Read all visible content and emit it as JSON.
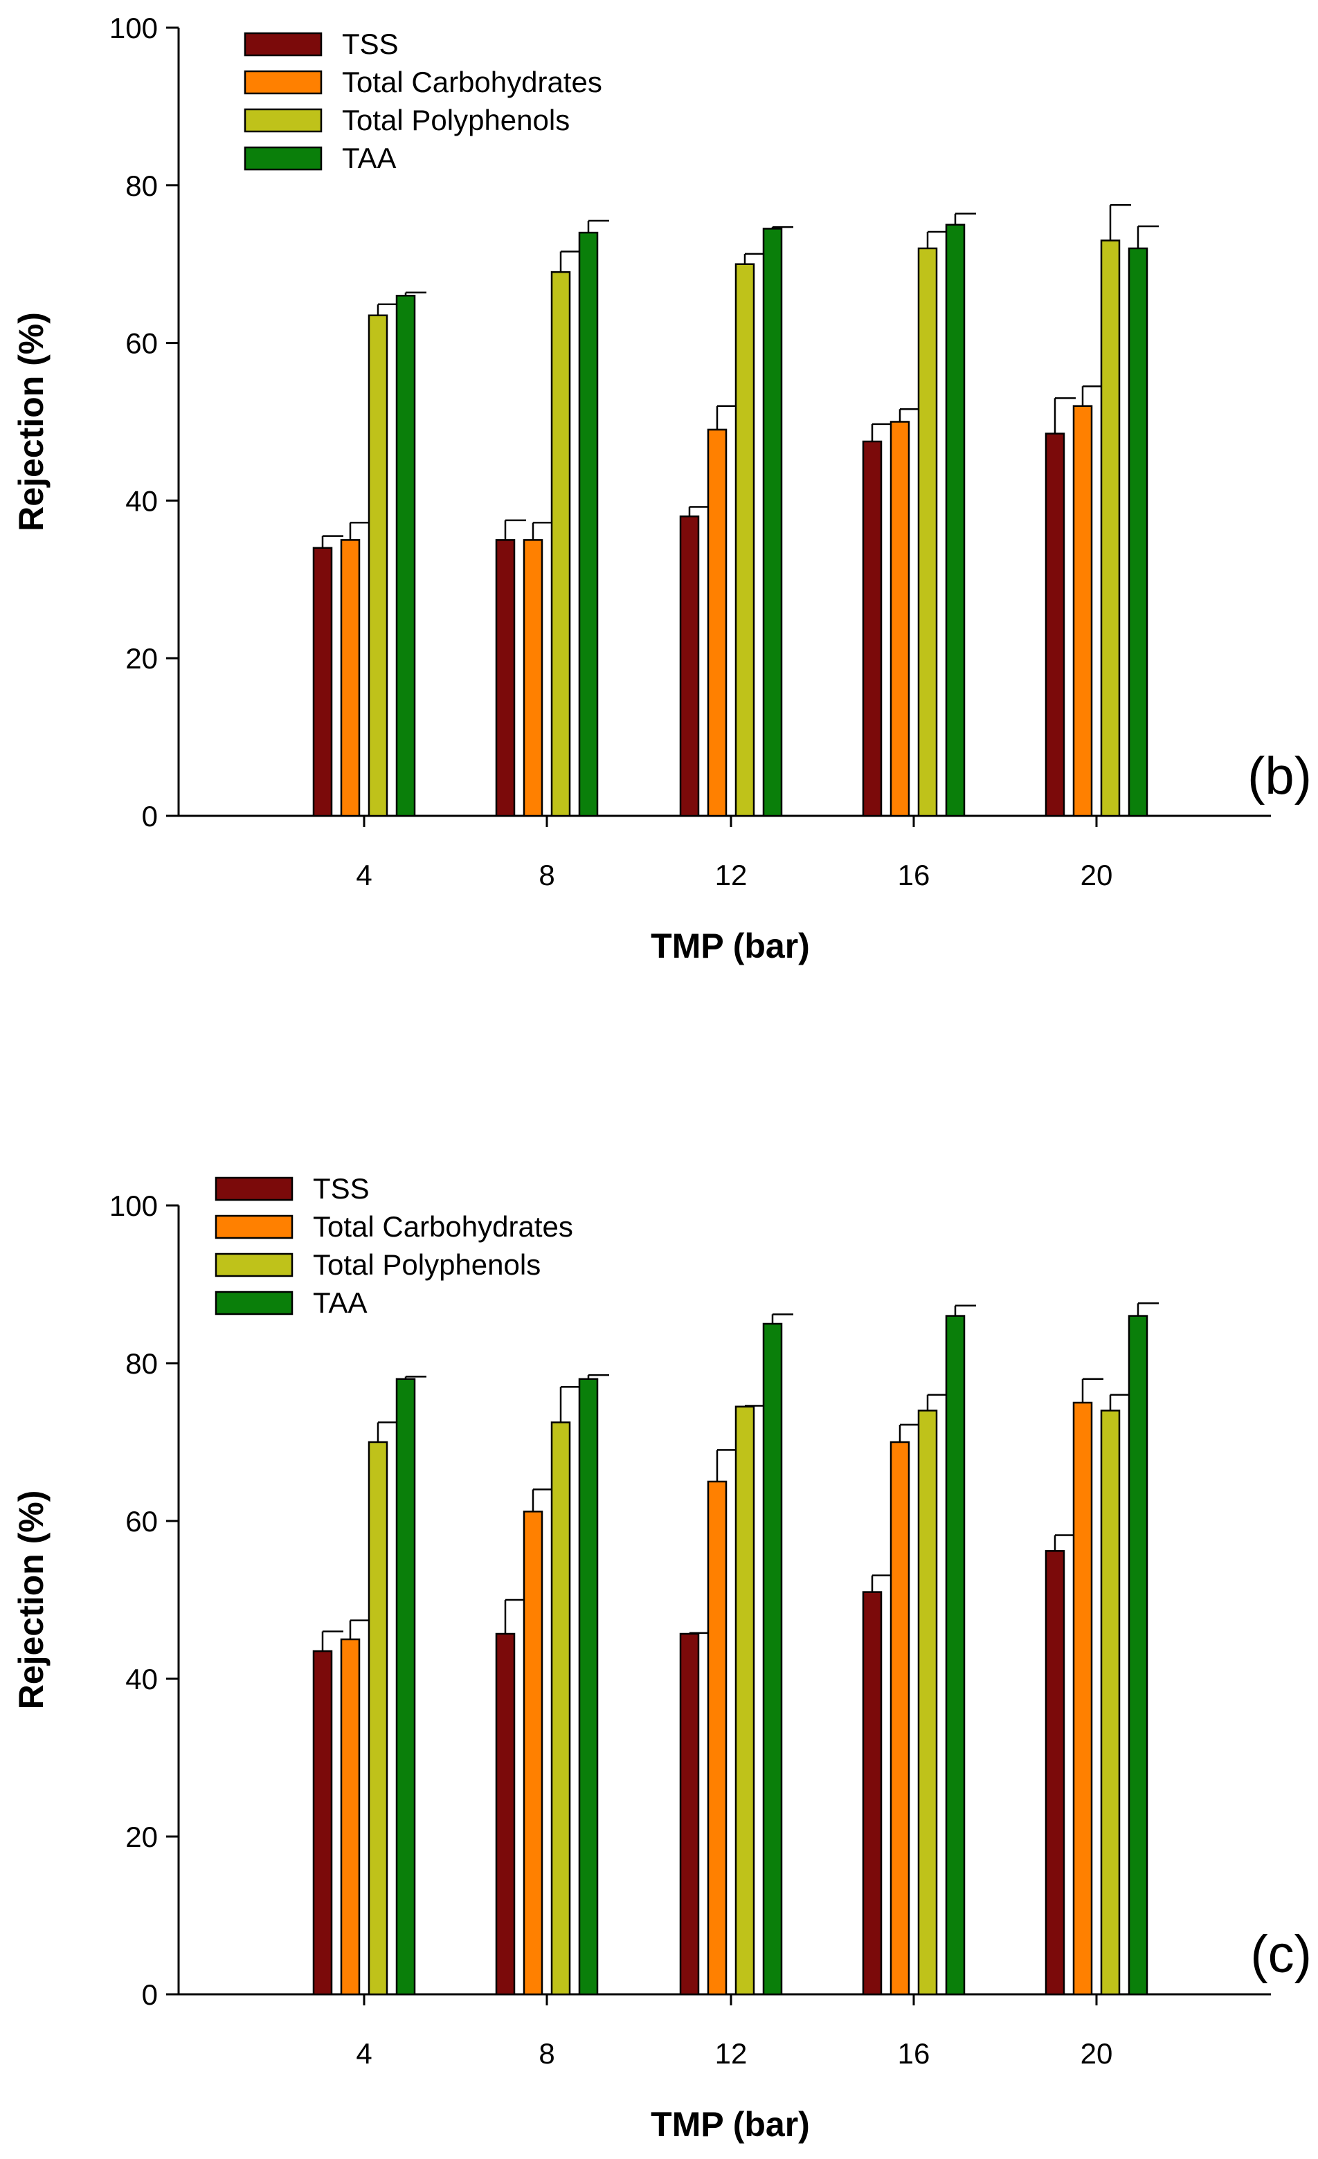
{
  "chart_data": [
    {
      "type": "bar",
      "panel_label": "(b)",
      "xlabel": "TMP (bar)",
      "ylabel": "Rejection (%)",
      "ylim": [
        0,
        100
      ],
      "yticks": [
        0,
        20,
        40,
        60,
        80,
        100
      ],
      "categories": [
        "4",
        "8",
        "12",
        "16",
        "20"
      ],
      "legend_position": "top-left",
      "series": [
        {
          "name": "TSS",
          "color": "#7b0a0a",
          "values": [
            34,
            35,
            38,
            47.5,
            48.5
          ],
          "errors": [
            1.5,
            2.5,
            1.2,
            2.2,
            4.5
          ]
        },
        {
          "name": "Total Carbohydrates",
          "color": "#ff8000",
          "values": [
            35,
            35,
            49,
            50,
            52
          ],
          "errors": [
            2.2,
            2.2,
            3.0,
            1.6,
            2.5
          ]
        },
        {
          "name": "Total Polyphenols",
          "color": "#bfc21a",
          "values": [
            63.5,
            69,
            70,
            72,
            73
          ],
          "errors": [
            1.4,
            2.6,
            1.3,
            2.1,
            4.5
          ]
        },
        {
          "name": "TAA",
          "color": "#0a7f0a",
          "values": [
            66,
            74,
            74.5,
            75,
            72
          ],
          "errors": [
            0.4,
            1.5,
            0.2,
            1.4,
            2.8
          ]
        }
      ]
    },
    {
      "type": "bar",
      "panel_label": "(c)",
      "xlabel": "TMP (bar)",
      "ylabel": "Rejection (%)",
      "ylim": [
        0,
        100
      ],
      "yticks": [
        0,
        20,
        40,
        60,
        80,
        100
      ],
      "categories": [
        "4",
        "8",
        "12",
        "16",
        "20"
      ],
      "legend_position": "top-left",
      "series": [
        {
          "name": "TSS",
          "color": "#7b0a0a",
          "values": [
            43.5,
            45.7,
            45.7,
            51,
            56.2
          ],
          "errors": [
            2.5,
            4.3,
            0.1,
            2.1,
            2.0
          ]
        },
        {
          "name": "Total Carbohydrates",
          "color": "#ff8000",
          "values": [
            45,
            61.2,
            65,
            70,
            75
          ],
          "errors": [
            2.4,
            2.8,
            4.0,
            2.2,
            3.0
          ]
        },
        {
          "name": "Total Polyphenols",
          "color": "#bfc21a",
          "values": [
            70,
            72.5,
            74.5,
            74,
            74
          ],
          "errors": [
            2.5,
            4.5,
            0.1,
            2.0,
            2.0
          ]
        },
        {
          "name": "TAA",
          "color": "#0a7f0a",
          "values": [
            78,
            78,
            85,
            86,
            86
          ],
          "errors": [
            0.3,
            0.5,
            1.2,
            1.3,
            1.6
          ]
        }
      ]
    }
  ]
}
